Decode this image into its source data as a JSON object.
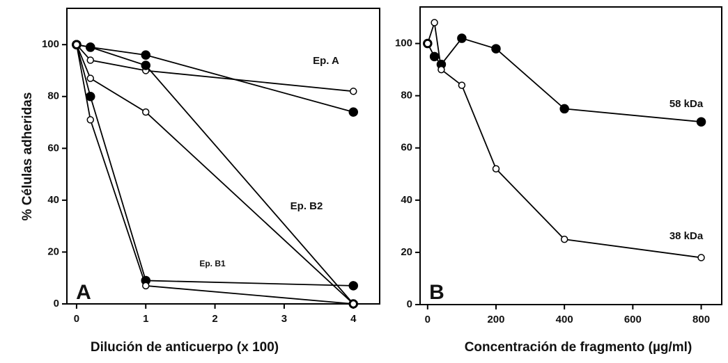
{
  "chart_data": [
    {
      "type": "line",
      "panel_label": "A",
      "x_label": "Dilución de anticuerpo (x 100)",
      "y_label": "% Células adheridas",
      "annotations": [
        "Ep. A",
        "Ep. B2",
        "Ep. B1"
      ],
      "x": [
        0,
        0.2,
        1,
        4
      ],
      "series": [
        {
          "color": "#000000",
          "marker": "filled",
          "values": [
            100,
            99,
            96,
            74
          ]
        },
        {
          "color": "#000000",
          "marker": "open",
          "values": [
            100,
            94,
            90,
            82
          ]
        },
        {
          "color": "#000000",
          "marker": "filled",
          "values": [
            100,
            99,
            92,
            0
          ]
        },
        {
          "color": "#000000",
          "marker": "open",
          "values": [
            100,
            87,
            74,
            0
          ]
        },
        {
          "color": "#000000",
          "marker": "filled",
          "values": [
            100,
            80,
            9,
            7
          ]
        },
        {
          "color": "#000000",
          "marker": "open",
          "values": [
            100,
            71,
            7,
            0
          ]
        }
      ],
      "xlim": [
        -0.14,
        4.38
      ],
      "xticks": [
        0,
        1,
        2,
        3,
        4
      ],
      "ylim": [
        0,
        114
      ],
      "yticks": [
        0,
        20,
        40,
        60,
        80,
        100
      ]
    },
    {
      "type": "line",
      "panel_label": "B",
      "x_label": "Concentración de fragmento (µg/ml)",
      "x": [
        0,
        20,
        40,
        100,
        200,
        400,
        800
      ],
      "series": [
        {
          "name": "58 kDa",
          "color": "#000000",
          "marker": "filled",
          "values": [
            100,
            95,
            92,
            102,
            98,
            75,
            70
          ]
        },
        {
          "name": "38 kDa",
          "color": "#000000",
          "marker": "open",
          "values": [
            100,
            108,
            90,
            84,
            52,
            25,
            18
          ]
        }
      ],
      "xlim": [
        -22,
        860
      ],
      "xticks": [
        0,
        200,
        400,
        600,
        800
      ],
      "ylim": [
        0,
        114
      ],
      "yticks": [
        0,
        20,
        40,
        60,
        80,
        100
      ]
    }
  ]
}
